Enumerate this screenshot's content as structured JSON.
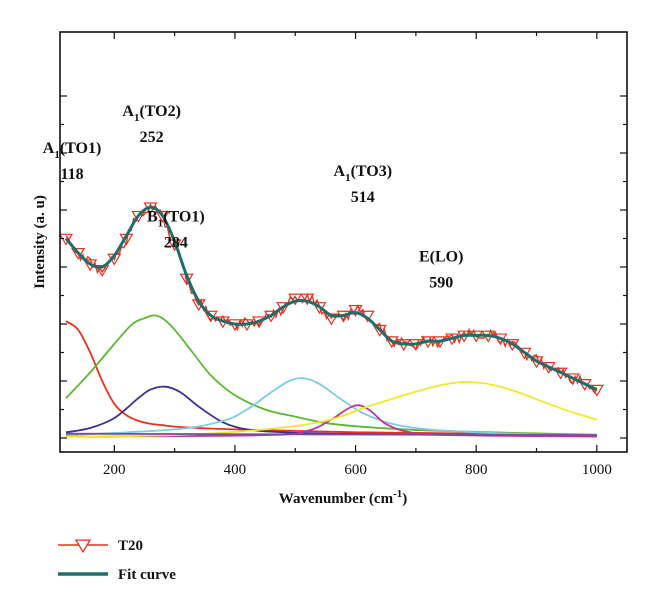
{
  "chart_data": {
    "type": "line",
    "title": "",
    "xlabel": "Wavenumber (cm",
    "xlabel_sup": "-1",
    "xlabel_end": ")",
    "ylabel": "Intensity (a. u)",
    "xlim": [
      110,
      1050
    ],
    "ylim": [
      0,
      12.2
    ],
    "x_ticks": [
      200,
      400,
      600,
      800,
      1000
    ],
    "y_ticks_visible": false,
    "grid": false,
    "legend_position": "bottom-left-outside",
    "annotations": [
      {
        "main": "A",
        "sub": "1",
        "rest": "(TO1)",
        "value": "118",
        "x": 130,
        "y": 10.0
      },
      {
        "main": "A",
        "sub": "1",
        "rest": "(TO2)",
        "value": "252",
        "x": 262,
        "y": 11.3
      },
      {
        "main": "B",
        "sub": "1",
        "rest": "(TO1)",
        "value": "284",
        "x": 302,
        "y": 7.6
      },
      {
        "main": "A",
        "sub": "1",
        "rest": "(TO3)",
        "value": "514",
        "x": 612,
        "y": 9.2
      },
      {
        "main": "E",
        "sub": "",
        "rest": "(LO)",
        "value": "590",
        "x": 742,
        "y": 6.2
      }
    ],
    "series": [
      {
        "name": "T20",
        "color": "#e8311e",
        "marker": "triangle-down-open",
        "x": [
          120,
          140,
          160,
          180,
          200,
          220,
          240,
          260,
          280,
          300,
          320,
          340,
          360,
          380,
          400,
          420,
          440,
          460,
          480,
          500,
          520,
          540,
          560,
          580,
          600,
          620,
          640,
          660,
          680,
          700,
          720,
          740,
          760,
          780,
          800,
          820,
          840,
          860,
          880,
          900,
          920,
          940,
          960,
          980,
          1000
        ],
        "y": [
          7.0,
          6.5,
          6.1,
          5.9,
          6.3,
          7.0,
          7.8,
          8.1,
          7.8,
          6.8,
          5.6,
          4.7,
          4.3,
          4.1,
          4.0,
          4.0,
          4.1,
          4.3,
          4.6,
          4.9,
          4.9,
          4.6,
          4.2,
          4.3,
          4.5,
          4.3,
          3.8,
          3.4,
          3.3,
          3.3,
          3.4,
          3.4,
          3.5,
          3.6,
          3.6,
          3.6,
          3.5,
          3.3,
          3.0,
          2.7,
          2.5,
          2.3,
          2.1,
          1.9,
          1.7
        ]
      },
      {
        "name": "Fit curve",
        "color": "#1f6e6e",
        "marker": "none",
        "x": [
          120,
          140,
          160,
          180,
          200,
          220,
          240,
          260,
          280,
          300,
          320,
          340,
          360,
          380,
          400,
          420,
          440,
          460,
          480,
          500,
          520,
          540,
          560,
          580,
          600,
          620,
          640,
          660,
          680,
          700,
          720,
          740,
          760,
          780,
          800,
          820,
          840,
          860,
          880,
          900,
          920,
          940,
          960,
          980,
          1000
        ],
        "y": [
          7.0,
          6.5,
          6.1,
          6.0,
          6.4,
          7.1,
          7.8,
          8.1,
          7.8,
          6.9,
          5.7,
          4.8,
          4.3,
          4.1,
          4.0,
          4.0,
          4.1,
          4.3,
          4.6,
          4.8,
          4.8,
          4.6,
          4.3,
          4.3,
          4.4,
          4.2,
          3.8,
          3.4,
          3.3,
          3.3,
          3.4,
          3.4,
          3.5,
          3.6,
          3.6,
          3.6,
          3.5,
          3.3,
          3.0,
          2.7,
          2.5,
          2.3,
          2.1,
          1.9,
          1.7
        ]
      }
    ],
    "components": [
      {
        "color": "#e8311e",
        "x": [
          120,
          140,
          160,
          180,
          200,
          220,
          240,
          260,
          280,
          300,
          340,
          400,
          500,
          600,
          700,
          800,
          900,
          1000
        ],
        "y": [
          4.1,
          3.8,
          3.0,
          2.0,
          1.2,
          0.8,
          0.6,
          0.5,
          0.45,
          0.4,
          0.35,
          0.3,
          0.25,
          0.2,
          0.18,
          0.15,
          0.12,
          0.1
        ]
      },
      {
        "color": "#3a2f96",
        "x": [
          120,
          160,
          200,
          240,
          260,
          285,
          310,
          340,
          380,
          420,
          480,
          560,
          700,
          850,
          1000
        ],
        "y": [
          0.2,
          0.35,
          0.7,
          1.4,
          1.7,
          1.8,
          1.6,
          1.1,
          0.55,
          0.3,
          0.2,
          0.15,
          0.12,
          0.1,
          0.1
        ]
      },
      {
        "color": "#5cb82e",
        "x": [
          120,
          160,
          200,
          230,
          250,
          265,
          280,
          300,
          330,
          360,
          400,
          450,
          500,
          560,
          640,
          740,
          860,
          1000
        ],
        "y": [
          1.4,
          2.3,
          3.3,
          4.0,
          4.2,
          4.3,
          4.2,
          3.8,
          3.0,
          2.2,
          1.5,
          1.0,
          0.75,
          0.5,
          0.35,
          0.25,
          0.18,
          0.12
        ]
      },
      {
        "color": "#7ecbe3",
        "x": [
          120,
          300,
          380,
          420,
          460,
          490,
          514,
          540,
          570,
          610,
          660,
          720,
          800,
          900,
          1000
        ],
        "y": [
          0.1,
          0.3,
          0.6,
          1.0,
          1.6,
          2.0,
          2.1,
          1.9,
          1.45,
          0.9,
          0.5,
          0.3,
          0.2,
          0.12,
          0.1
        ]
      },
      {
        "color": "#b8389a",
        "x": [
          120,
          450,
          520,
          560,
          585,
          605,
          625,
          650,
          690,
          760,
          1000
        ],
        "y": [
          0.05,
          0.1,
          0.25,
          0.65,
          1.0,
          1.15,
          0.95,
          0.5,
          0.2,
          0.1,
          0.05
        ]
      },
      {
        "color": "#f0e92a",
        "x": [
          120,
          300,
          450,
          550,
          620,
          680,
          730,
          770,
          800,
          830,
          870,
          920,
          960,
          1000
        ],
        "y": [
          0.05,
          0.1,
          0.3,
          0.6,
          1.1,
          1.5,
          1.8,
          1.95,
          1.95,
          1.85,
          1.6,
          1.2,
          0.9,
          0.65
        ]
      },
      {
        "color": "#7b4a9c",
        "x": [
          120,
          1000
        ],
        "y": [
          0.15,
          0.1
        ]
      }
    ]
  }
}
